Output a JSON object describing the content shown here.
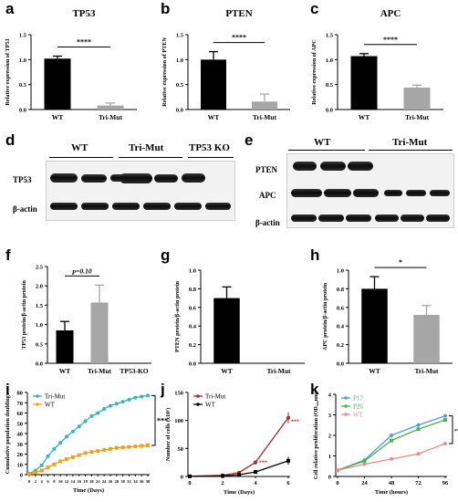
{
  "panels": {
    "a": {
      "letter": "a"
    },
    "b": {
      "letter": "b"
    },
    "c": {
      "letter": "c"
    },
    "d": {
      "letter": "d",
      "groups": [
        "WT",
        "Tri-Mut",
        "TP53 KO"
      ],
      "rows": [
        "TP53",
        "β-actin"
      ]
    },
    "e": {
      "letter": "e",
      "groups": [
        "WT",
        "Tri-Mut"
      ],
      "rows": [
        "PTEN",
        "APC",
        "β-actin"
      ]
    },
    "f": {
      "letter": "f"
    },
    "g": {
      "letter": "g"
    },
    "h": {
      "letter": "h"
    },
    "i": {
      "letter": "i"
    },
    "j": {
      "letter": "j"
    },
    "k": {
      "letter": "k"
    }
  },
  "chart_data": [
    {
      "id": "a",
      "type": "bar",
      "title": "TP53",
      "ylabel": "Relative expression of TP53",
      "categories": [
        "WT",
        "Tri-Mut"
      ],
      "values": [
        1.02,
        0.08
      ],
      "errors": [
        0.05,
        0.05
      ],
      "colors": [
        "#000000",
        "#a6a6a6"
      ],
      "ylim": [
        0,
        1.5
      ],
      "yticks": [
        "0.0",
        "0.5",
        "1.0",
        "1.5"
      ],
      "significance": "****"
    },
    {
      "id": "b",
      "type": "bar",
      "title": "PTEN",
      "ylabel": "Relative expression of PTEN",
      "categories": [
        "WT",
        "Tri-Mut"
      ],
      "values": [
        1.0,
        0.16
      ],
      "errors": [
        0.16,
        0.15
      ],
      "colors": [
        "#000000",
        "#a6a6a6"
      ],
      "ylim": [
        0,
        1.5
      ],
      "yticks": [
        "0.0",
        "0.5",
        "1.0",
        "1.5"
      ],
      "significance": "****"
    },
    {
      "id": "c",
      "type": "bar",
      "title": "APC",
      "ylabel": "Relative expression of  APC",
      "categories": [
        "WT",
        "Tri-Mut"
      ],
      "values": [
        1.07,
        0.44
      ],
      "errors": [
        0.05,
        0.05
      ],
      "colors": [
        "#000000",
        "#a6a6a6"
      ],
      "ylim": [
        0,
        1.5
      ],
      "yticks": [
        "0.0",
        "0.5",
        "1.0",
        "1.5"
      ],
      "significance": "****"
    },
    {
      "id": "f",
      "type": "bar",
      "title": "",
      "ylabel": "TP53 protein/β-actin protein",
      "categories": [
        "WT",
        "Tri-Mut",
        "TP53-KO"
      ],
      "values": [
        0.85,
        1.57,
        0.0
      ],
      "errors": [
        0.23,
        0.45,
        0
      ],
      "colors": [
        "#000000",
        "#a6a6a6",
        "#a6a6a6"
      ],
      "ylim": [
        0,
        2.5
      ],
      "yticks": [
        "0.0",
        "0.5",
        "1.0",
        "1.5",
        "2.0",
        "2.5"
      ],
      "annotation": "p=0.10"
    },
    {
      "id": "g",
      "type": "bar",
      "title": "",
      "ylabel": "PTEN protein/β-actin protein",
      "categories": [
        "WT",
        "Tri-Mut"
      ],
      "values": [
        0.7,
        0.0
      ],
      "errors": [
        0.12,
        0
      ],
      "colors": [
        "#000000",
        "#a6a6a6"
      ],
      "ylim": [
        0,
        1.0
      ],
      "yticks": [
        "0.0",
        "0.2",
        "0.4",
        "0.6",
        "0.8",
        "1.0"
      ]
    },
    {
      "id": "h",
      "type": "bar",
      "title": "",
      "ylabel": "APC protein/β-actin protein",
      "categories": [
        "WT",
        "Tri-Mut"
      ],
      "values": [
        0.8,
        0.52
      ],
      "errors": [
        0.13,
        0.1
      ],
      "colors": [
        "#000000",
        "#a6a6a6"
      ],
      "ylim": [
        0,
        1.0
      ],
      "yticks": [
        "0.0",
        "0.2",
        "0.4",
        "0.6",
        "0.8",
        "1.0"
      ],
      "significance": "*"
    },
    {
      "id": "i",
      "type": "line",
      "xlabel": "Time (Days)",
      "ylabel": "Cumulative population doublings",
      "x": [
        0,
        2,
        4,
        6,
        8,
        10,
        12,
        14,
        16,
        18,
        20,
        22,
        24,
        26,
        28,
        30,
        32,
        34,
        36,
        38
      ],
      "xticks": [
        "0",
        "2",
        "4",
        "6",
        "8",
        "10",
        "12",
        "14",
        "16",
        "18",
        "20",
        "22",
        "24",
        "26",
        "28",
        "30",
        "32",
        "34",
        "36",
        "38"
      ],
      "ylim": [
        0,
        80
      ],
      "yticks": [
        "0",
        "10",
        "20",
        "30",
        "40",
        "50",
        "60",
        "70",
        "80"
      ],
      "series": [
        {
          "name": "Tri-Mut",
          "color": "#2fb8b8",
          "values": [
            1,
            4,
            9,
            18,
            25,
            31,
            37,
            42,
            47,
            52,
            57,
            60,
            64,
            67,
            69,
            71,
            73,
            75,
            76,
            77
          ]
        },
        {
          "name": "WT",
          "color": "#f0a11c",
          "values": [
            1,
            2,
            4,
            7,
            10,
            13,
            15,
            17,
            19,
            21,
            22,
            23,
            24,
            25,
            26,
            26.5,
            27,
            27.5,
            28,
            28.5
          ]
        }
      ],
      "significance": "***",
      "legend": "top-left"
    },
    {
      "id": "j",
      "type": "line",
      "xlabel": "Time (Days)",
      "ylabel": "Number of cells (x10⁵)",
      "x": [
        0,
        2,
        3,
        4,
        6
      ],
      "xticks": [
        "0",
        "2",
        "4",
        "6"
      ],
      "ylim": [
        0,
        150
      ],
      "yticks": [
        "0",
        "50",
        "100",
        "150"
      ],
      "series": [
        {
          "name": "Tri-Mut",
          "color": "#b22222",
          "values": [
            0.3,
            2,
            7,
            25,
            105
          ],
          "errors": [
            0,
            1,
            2,
            4,
            10
          ]
        },
        {
          "name": "WT",
          "color": "#000000",
          "values": [
            0.3,
            1,
            3,
            8,
            28
          ],
          "errors": [
            0,
            1,
            1,
            2,
            7
          ]
        }
      ],
      "annotations": [
        "***",
        "***"
      ],
      "legend": "top-left"
    },
    {
      "id": "k",
      "type": "line",
      "xlabel": "Time (hours)",
      "ylabel": "Cell relative proliferation (OD₄₅₀nm)",
      "x": [
        0,
        24,
        48,
        72,
        96
      ],
      "xticks": [
        "0",
        "24",
        "48",
        "72",
        "96"
      ],
      "ylim": [
        0,
        4
      ],
      "yticks": [
        "0",
        "1",
        "2",
        "3",
        "4"
      ],
      "series": [
        {
          "name": "P17",
          "color": "#4f9fd6",
          "values": [
            0.3,
            0.8,
            2.0,
            2.5,
            2.95
          ]
        },
        {
          "name": "P26",
          "color": "#4bb34b",
          "values": [
            0.3,
            0.75,
            1.75,
            2.3,
            2.75
          ]
        },
        {
          "name": "WT",
          "color": "#f08a8a",
          "values": [
            0.3,
            0.6,
            0.85,
            1.1,
            1.6
          ]
        }
      ],
      "significance": "**",
      "legend": "top-left"
    }
  ]
}
